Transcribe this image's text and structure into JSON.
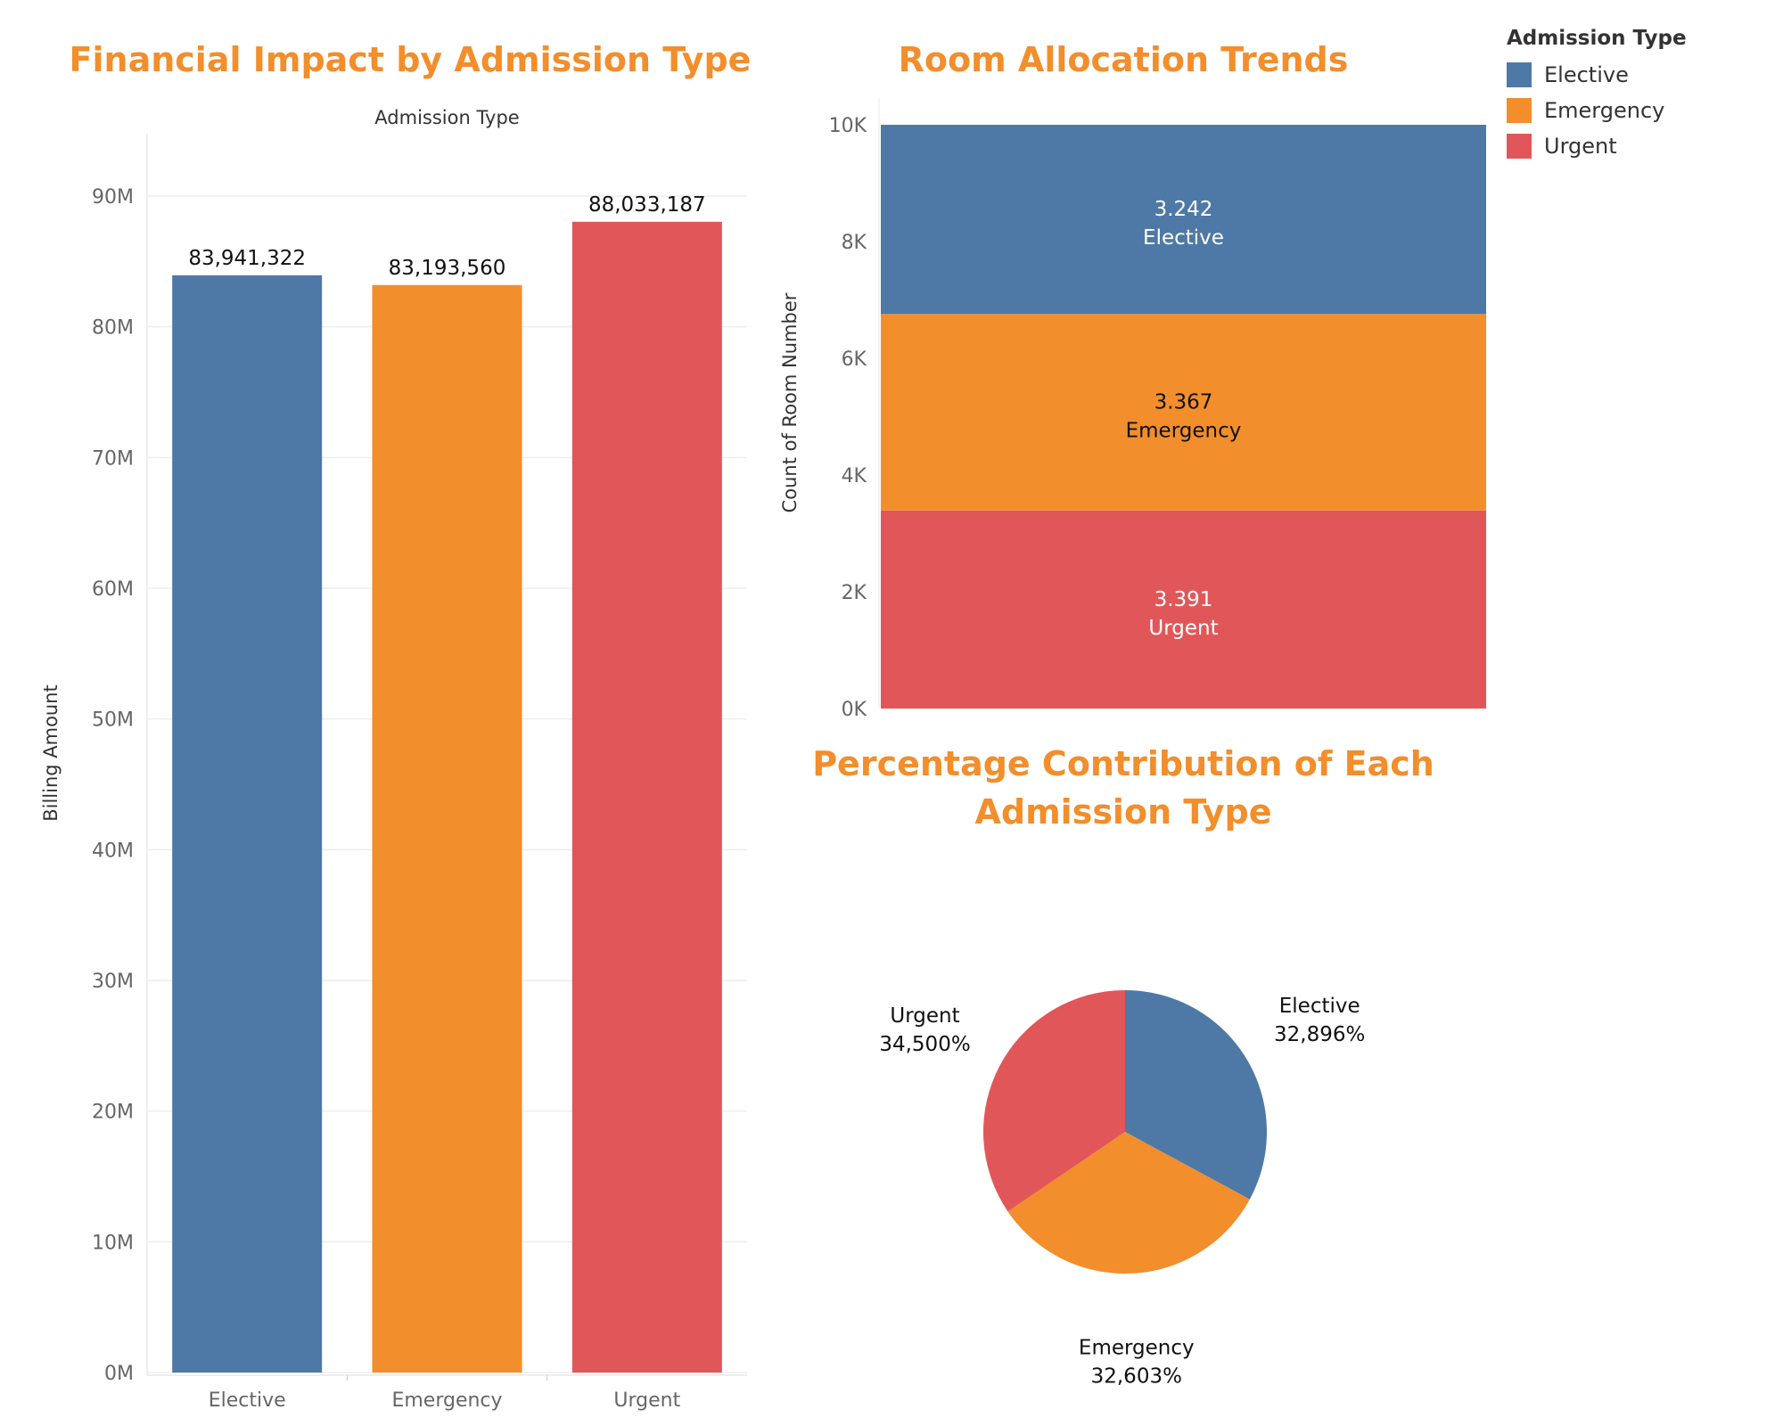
{
  "titles": {
    "bar": "Financial Impact by Admission Type",
    "stack": "Room Allocation Trends",
    "pie_line1": "Percentage Contribution of Each",
    "pie_line2": "Admission Type"
  },
  "colors": {
    "Elective": "#4e79a7",
    "Emergency": "#f28e2b",
    "Urgent": "#e15759"
  },
  "legend": {
    "title": "Admission Type",
    "items": [
      "Elective",
      "Emergency",
      "Urgent"
    ]
  },
  "chart_data": [
    {
      "type": "bar",
      "title": "Financial Impact by Admission Type",
      "header": "Admission Type",
      "ylabel": "Billing Amount",
      "categories": [
        "Elective",
        "Emergency",
        "Urgent"
      ],
      "values": [
        83941322,
        83193560,
        88033187
      ],
      "value_labels": [
        "83,941,322",
        "83,193,560",
        "88,033,187"
      ],
      "ylim": [
        0,
        90000000
      ],
      "yticks": [
        0,
        10000000,
        20000000,
        30000000,
        40000000,
        50000000,
        60000000,
        70000000,
        80000000,
        90000000
      ],
      "ytick_labels": [
        "0M",
        "10M",
        "20M",
        "30M",
        "40M",
        "50M",
        "60M",
        "70M",
        "80M",
        "90M"
      ],
      "grid": true
    },
    {
      "type": "bar",
      "stacked": true,
      "title": "Room Allocation Trends",
      "ylabel": "Count of Room Number",
      "series": [
        {
          "name": "Urgent",
          "value": 3391,
          "label": "3.391"
        },
        {
          "name": "Emergency",
          "value": 3367,
          "label": "3.367"
        },
        {
          "name": "Elective",
          "value": 3242,
          "label": "3.242"
        }
      ],
      "ylim": [
        0,
        10000
      ],
      "yticks": [
        0,
        2000,
        4000,
        6000,
        8000,
        10000
      ],
      "ytick_labels": [
        "0K",
        "2K",
        "4K",
        "6K",
        "8K",
        "10K"
      ]
    },
    {
      "type": "pie",
      "title": "Percentage Contribution of Each Admission Type",
      "slices": [
        {
          "name": "Elective",
          "value": 32.896,
          "label": "32,896%"
        },
        {
          "name": "Emergency",
          "value": 32.603,
          "label": "32,603%"
        },
        {
          "name": "Urgent",
          "value": 34.5,
          "label": "34,500%"
        }
      ]
    }
  ]
}
